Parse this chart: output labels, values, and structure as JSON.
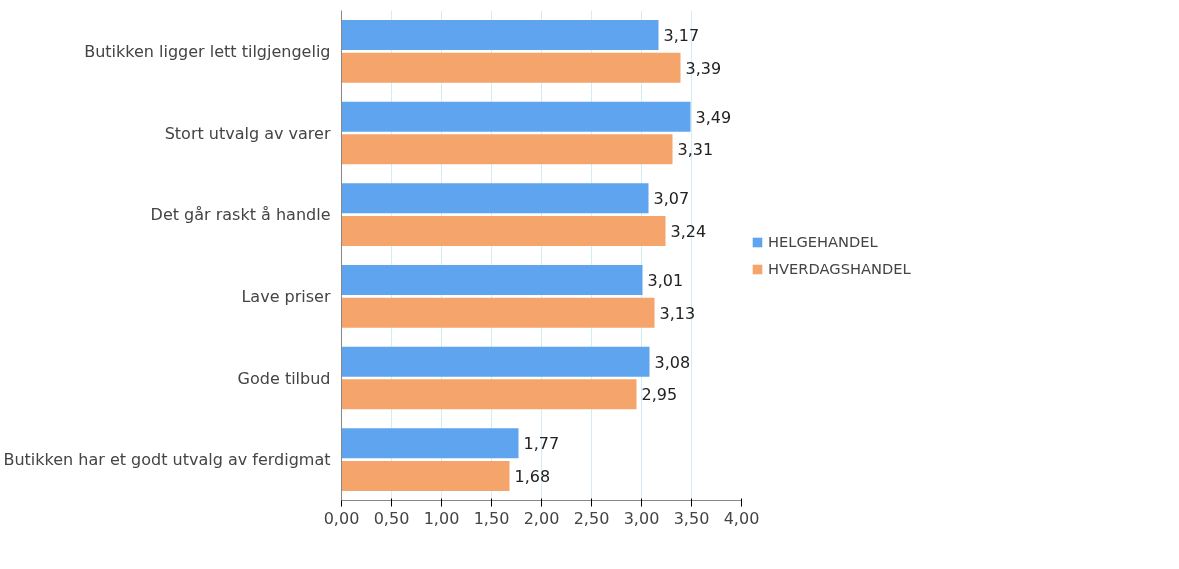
{
  "chart_data": {
    "type": "bar",
    "orientation": "horizontal",
    "categories": [
      "Butikken ligger lett tilgjengelig",
      "Stort utvalg av varer",
      "Det går raskt å handle",
      "Lave priser",
      "Gode tilbud",
      "Butikken har et godt utvalg av ferdigmat"
    ],
    "series": [
      {
        "name": "HELGEHANDEL",
        "color": "#5fa4ee",
        "values": [
          3.17,
          3.49,
          3.07,
          3.01,
          3.08,
          1.77
        ],
        "value_labels": [
          "3,17",
          "3,49",
          "3,07",
          "3,01",
          "3,08",
          "1,77"
        ]
      },
      {
        "name": "HVERDAGSHANDEL",
        "color": "#f5a46c",
        "values": [
          3.39,
          3.31,
          3.24,
          3.13,
          2.95,
          1.68
        ],
        "value_labels": [
          "3,39",
          "3,31",
          "3,24",
          "3,13",
          "2,95",
          "1,68"
        ]
      }
    ],
    "xlim": [
      0,
      4
    ],
    "xticks": [
      {
        "value": 0,
        "label": "0,00"
      },
      {
        "value": 0.5,
        "label": "0,50"
      },
      {
        "value": 1,
        "label": "1,00"
      },
      {
        "value": 1.5,
        "label": "1,50"
      },
      {
        "value": 2,
        "label": "2,00"
      },
      {
        "value": 2.5,
        "label": "2,50"
      },
      {
        "value": 3,
        "label": "3,00"
      },
      {
        "value": 3.5,
        "label": "3,50"
      },
      {
        "value": 4,
        "label": "4,00"
      }
    ],
    "grid": "x",
    "legend": "right"
  }
}
